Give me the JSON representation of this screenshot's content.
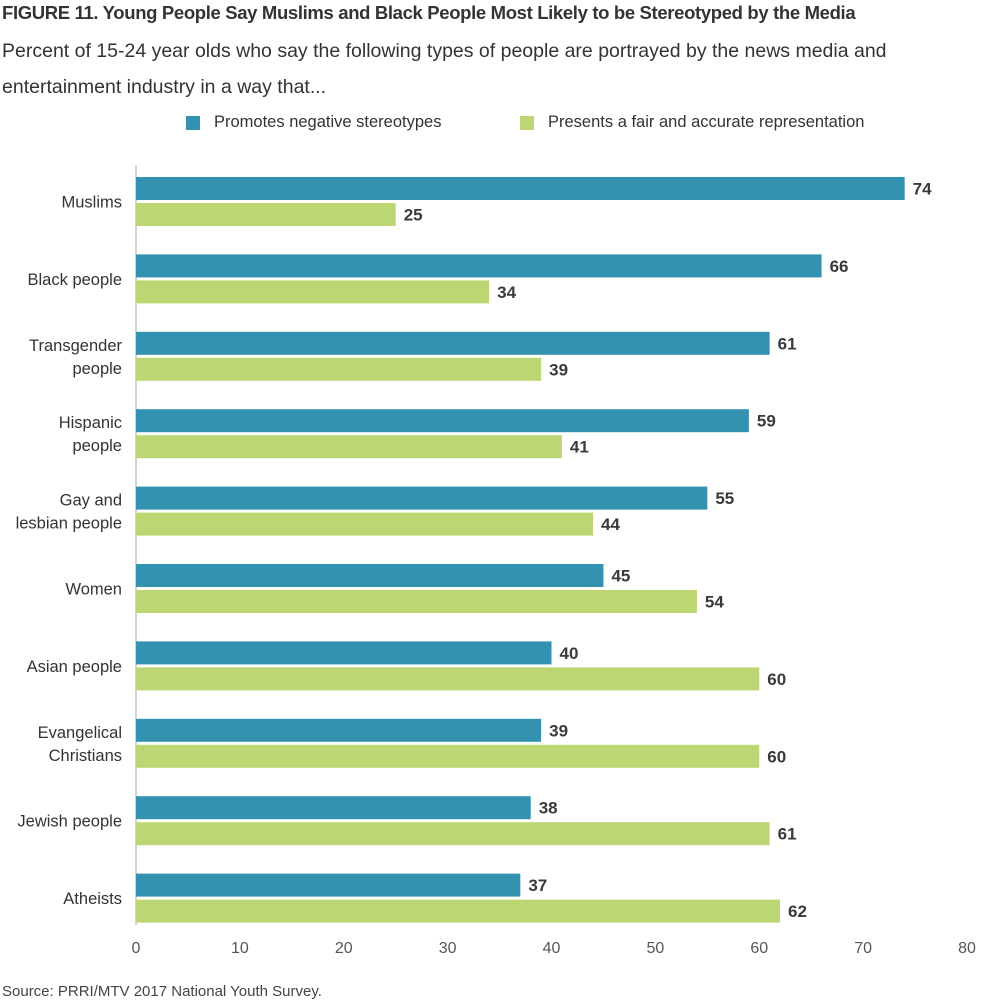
{
  "title": "FIGURE 11. Young People Say Muslims and Black People Most Likely to be Stereotyped by the Media",
  "subtitle": "Percent of 15-24 year olds who say the following types of people are portrayed by the news media and entertainment industry in a way that...",
  "source": "Source: PRRI/MTV 2017 National Youth Survey.",
  "colors": {
    "negative": "#3292b0",
    "fair": "#bdd674"
  },
  "chart_data": {
    "type": "bar",
    "orientation": "horizontal",
    "categories": [
      [
        "Muslims"
      ],
      [
        "Black people"
      ],
      [
        "Transgender",
        "people"
      ],
      [
        "Hispanic",
        "people"
      ],
      [
        "Gay and",
        "lesbian people"
      ],
      [
        "Women"
      ],
      [
        "Asian people"
      ],
      [
        "Evangelical",
        "Christians"
      ],
      [
        "Jewish people"
      ],
      [
        "Atheists"
      ]
    ],
    "series": [
      {
        "name": "Promotes negative stereotypes",
        "color": "#3292b0",
        "values": [
          74,
          66,
          61,
          59,
          55,
          45,
          40,
          39,
          38,
          37
        ]
      },
      {
        "name": "Presents a fair and accurate representation",
        "color": "#bdd674",
        "values": [
          25,
          34,
          39,
          41,
          44,
          54,
          60,
          60,
          61,
          62
        ]
      }
    ],
    "xlim": [
      0,
      80
    ],
    "xticks": [
      0,
      10,
      20,
      30,
      40,
      50,
      60,
      70,
      80
    ],
    "legend_position": "top",
    "grid": false
  }
}
